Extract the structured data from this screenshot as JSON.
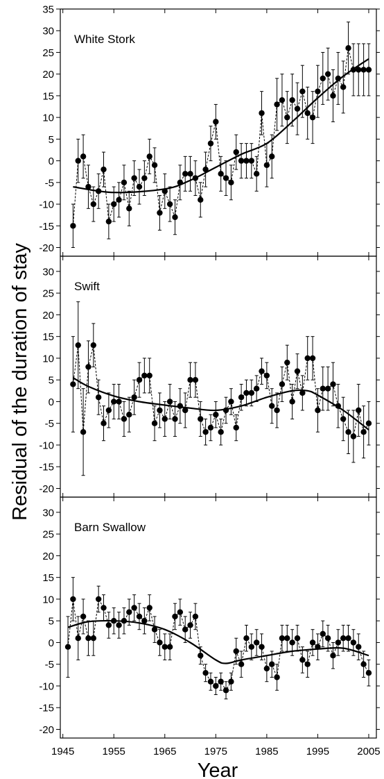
{
  "figure": {
    "ylabel": "Residual of the duration of stay",
    "xlabel": "Year"
  },
  "chart_data": [
    {
      "type": "line",
      "title": "White Stork",
      "ylim": [
        -22,
        35
      ],
      "yticks": [
        -20,
        -15,
        -10,
        -5,
        0,
        5,
        10,
        15,
        20,
        25,
        30,
        35
      ],
      "x": [
        1947,
        1948,
        1949,
        1950,
        1951,
        1952,
        1953,
        1954,
        1955,
        1956,
        1957,
        1958,
        1959,
        1960,
        1961,
        1962,
        1963,
        1964,
        1965,
        1966,
        1967,
        1968,
        1969,
        1970,
        1971,
        1972,
        1973,
        1974,
        1975,
        1976,
        1977,
        1978,
        1979,
        1980,
        1981,
        1982,
        1983,
        1984,
        1985,
        1986,
        1987,
        1988,
        1989,
        1990,
        1991,
        1992,
        1993,
        1994,
        1995,
        1996,
        1997,
        1998,
        1999,
        2000,
        2001,
        2002,
        2003,
        2004,
        2005
      ],
      "values": [
        -15,
        0,
        1,
        -6,
        -10,
        -7,
        -2,
        -14,
        -10,
        -9,
        -5,
        -11,
        -4,
        -6,
        -4,
        1,
        -1,
        -12,
        -7,
        -10,
        -13,
        -5,
        -3,
        -3,
        -4,
        -9,
        -2,
        4,
        9,
        -3,
        -4,
        -5,
        2,
        0,
        0,
        0,
        -3,
        11,
        -1,
        1,
        13,
        14,
        10,
        14,
        12,
        16,
        11,
        10,
        16,
        19,
        20,
        15,
        19,
        17,
        26,
        21,
        21,
        21,
        21
      ],
      "errors": [
        5,
        5,
        5,
        5,
        4,
        4,
        4,
        4,
        4,
        4,
        4,
        4,
        4,
        4,
        4,
        4,
        4,
        4,
        4,
        4,
        4,
        4,
        4,
        4,
        4,
        4,
        4,
        4,
        4,
        4,
        4,
        4,
        4,
        4,
        4,
        4,
        4,
        5,
        5,
        5,
        6,
        6,
        6,
        6,
        6,
        6,
        6,
        6,
        6,
        6,
        6,
        6,
        6,
        6,
        6,
        6,
        6,
        6,
        6
      ],
      "trend": [
        [
          1947,
          -6
        ],
        [
          1955,
          -7.3
        ],
        [
          1965,
          -6.5
        ],
        [
          1970,
          -4.5
        ],
        [
          1975,
          -1.5
        ],
        [
          1980,
          1.5
        ],
        [
          1985,
          4
        ],
        [
          1990,
          9
        ],
        [
          1995,
          14.5
        ],
        [
          2000,
          19.5
        ],
        [
          2005,
          23.5
        ]
      ]
    },
    {
      "type": "line",
      "title": "Swift",
      "ylim": [
        -22,
        33.5
      ],
      "yticks": [
        -20,
        -15,
        -10,
        -5,
        0,
        5,
        10,
        15,
        20,
        25,
        30
      ],
      "x": [
        1947,
        1948,
        1949,
        1950,
        1951,
        1952,
        1953,
        1954,
        1955,
        1956,
        1957,
        1958,
        1959,
        1960,
        1961,
        1962,
        1963,
        1964,
        1965,
        1966,
        1967,
        1968,
        1969,
        1970,
        1971,
        1972,
        1973,
        1974,
        1975,
        1976,
        1977,
        1978,
        1979,
        1980,
        1981,
        1982,
        1983,
        1984,
        1985,
        1986,
        1987,
        1988,
        1989,
        1990,
        1991,
        1992,
        1993,
        1994,
        1995,
        1996,
        1997,
        1998,
        1999,
        2000,
        2001,
        2002,
        2003,
        2004,
        2005
      ],
      "values": [
        4,
        13,
        -7,
        8,
        13,
        1,
        -5,
        -2,
        0,
        0,
        -4,
        -3,
        1,
        5,
        6,
        6,
        -5,
        -2,
        -4,
        0,
        -4,
        -1,
        -2,
        5,
        5,
        -4,
        -7,
        -6,
        -3,
        -7,
        -2,
        0,
        -6,
        1,
        2,
        2,
        3,
        7,
        6,
        -1,
        -2,
        4,
        9,
        0,
        7,
        2,
        10,
        10,
        -2,
        3,
        3,
        4,
        -1,
        -4,
        -7,
        -8,
        -2,
        -7,
        -5
      ],
      "errors": [
        11,
        10,
        10,
        6,
        5,
        4,
        4,
        4,
        4,
        4,
        4,
        4,
        4,
        4,
        4,
        4,
        4,
        4,
        4,
        4,
        4,
        4,
        4,
        4,
        4,
        4,
        3,
        3,
        3,
        3,
        3,
        3,
        3,
        3,
        3,
        3,
        3,
        3,
        3,
        4,
        4,
        4,
        4,
        4,
        4,
        4,
        5,
        5,
        5,
        5,
        5,
        5,
        5,
        5,
        5,
        6,
        6,
        6,
        5
      ],
      "trend": [
        [
          1947,
          5.5
        ],
        [
          1950,
          3.5
        ],
        [
          1955,
          1.3
        ],
        [
          1960,
          0
        ],
        [
          1965,
          -0.8
        ],
        [
          1970,
          -1.5
        ],
        [
          1975,
          -2
        ],
        [
          1980,
          -1
        ],
        [
          1985,
          1
        ],
        [
          1990,
          2.5
        ],
        [
          1993,
          2.5
        ],
        [
          1995,
          1.5
        ],
        [
          2000,
          -2
        ],
        [
          2005,
          -6.5
        ]
      ]
    },
    {
      "type": "line",
      "title": "Barn Swallow",
      "ylim": [
        -22,
        33.5
      ],
      "yticks": [
        -20,
        -15,
        -10,
        -5,
        0,
        5,
        10,
        15,
        20,
        25,
        30
      ],
      "x": [
        1946,
        1947,
        1948,
        1949,
        1950,
        1951,
        1952,
        1953,
        1954,
        1955,
        1956,
        1957,
        1958,
        1959,
        1960,
        1961,
        1962,
        1963,
        1964,
        1965,
        1966,
        1967,
        1968,
        1969,
        1970,
        1971,
        1972,
        1973,
        1974,
        1975,
        1976,
        1977,
        1978,
        1979,
        1980,
        1981,
        1982,
        1983,
        1984,
        1985,
        1986,
        1987,
        1988,
        1989,
        1990,
        1991,
        1992,
        1993,
        1994,
        1995,
        1996,
        1997,
        1998,
        1999,
        2000,
        2001,
        2002,
        2003,
        2004,
        2005
      ],
      "values": [
        -1,
        10,
        1,
        6,
        1,
        1,
        10,
        8,
        4,
        5,
        4,
        5,
        7,
        8,
        6,
        5,
        8,
        3,
        0,
        -1,
        -1,
        6,
        7,
        3,
        4,
        6,
        -3,
        -7,
        -9,
        -10,
        -9,
        -11,
        -9,
        -2,
        -5,
        1,
        -1,
        0,
        -1,
        -6,
        -5,
        -8,
        1,
        1,
        0,
        1,
        -4,
        -5,
        0,
        -1,
        2,
        1,
        -3,
        0,
        1,
        1,
        0,
        -1,
        -5,
        -7
      ],
      "errors": [
        7,
        5,
        5,
        4,
        4,
        4,
        3,
        3,
        3,
        3,
        3,
        3,
        3,
        3,
        3,
        3,
        3,
        3,
        3,
        3,
        3,
        3,
        3,
        3,
        3,
        3,
        2,
        2,
        2,
        2,
        2,
        2,
        2,
        3,
        3,
        3,
        3,
        3,
        3,
        3,
        3,
        3,
        3,
        3,
        3,
        3,
        3,
        3,
        3,
        3,
        3,
        3,
        3,
        3,
        3,
        3,
        3,
        3,
        3,
        3
      ],
      "trend": [
        [
          1946,
          3.5
        ],
        [
          1950,
          4.8
        ],
        [
          1955,
          5
        ],
        [
          1960,
          4.5
        ],
        [
          1965,
          3
        ],
        [
          1970,
          0
        ],
        [
          1975,
          -4
        ],
        [
          1977,
          -4.8
        ],
        [
          1980,
          -4
        ],
        [
          1985,
          -3
        ],
        [
          1990,
          -2
        ],
        [
          1995,
          -1.5
        ],
        [
          2000,
          -1.3
        ],
        [
          2005,
          -3
        ]
      ]
    }
  ],
  "xaxis": {
    "min": 1944.5,
    "max": 2006.5,
    "ticks": [
      1945,
      1955,
      1965,
      1975,
      1985,
      1995,
      2005
    ],
    "ticklabels": [
      "1945",
      "1955",
      "1965",
      "1975",
      "1985",
      "1995",
      "2005"
    ]
  }
}
